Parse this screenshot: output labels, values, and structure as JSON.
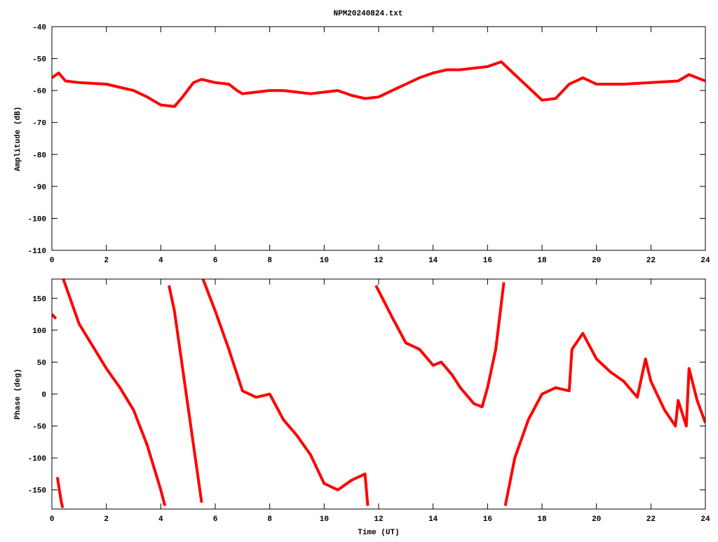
{
  "chart_data": [
    {
      "type": "line",
      "title": "NPM20240824.txt",
      "ylabel": "Amplitude (dB)",
      "xlim": [
        0,
        24
      ],
      "xticks": [
        0,
        2,
        4,
        6,
        8,
        10,
        12,
        14,
        16,
        18,
        20,
        22,
        24
      ],
      "ylim": [
        -110,
        -40
      ],
      "yticks": [
        -110,
        -100,
        -90,
        -80,
        -70,
        -60,
        -50,
        -40
      ],
      "series": [
        {
          "color": "#ff0000",
          "x": [
            0,
            0.25,
            0.5,
            1,
            2,
            3,
            3.5,
            4,
            4.5,
            4.8,
            5.2,
            5.5,
            6,
            6.5,
            6.8,
            7,
            7.5,
            8,
            8.5,
            9,
            9.5,
            10,
            10.5,
            11,
            11.5,
            12,
            12.5,
            13,
            13.5,
            14,
            14.5,
            15,
            15.5,
            16,
            16.5,
            17,
            17.5,
            18,
            18.5,
            19,
            19.5,
            20,
            21,
            22,
            23,
            23.4,
            24
          ],
          "values": [
            -56,
            -54.5,
            -57,
            -57.5,
            -58,
            -60,
            -62,
            -64.5,
            -65,
            -62,
            -57.5,
            -56.5,
            -57.5,
            -58,
            -60,
            -61,
            -60.5,
            -60,
            -60,
            -60.5,
            -61,
            -60.5,
            -60,
            -61.5,
            -62.5,
            -62,
            -60,
            -58,
            -56,
            -54.5,
            -53.5,
            -53.5,
            -53,
            -52.5,
            -51,
            -55,
            -59,
            -63,
            -62.5,
            -58,
            -56,
            -58,
            -58,
            -57.5,
            -57,
            -55,
            -57
          ]
        }
      ]
    },
    {
      "type": "line",
      "ylabel": "Phase (deg)",
      "xlabel": "Time (UT)",
      "xlim": [
        0,
        24
      ],
      "xticks": [
        0,
        2,
        4,
        6,
        8,
        10,
        12,
        14,
        16,
        18,
        20,
        22,
        24
      ],
      "ylim": [
        -180,
        180
      ],
      "yticks": [
        -150,
        -100,
        -50,
        0,
        50,
        100,
        150
      ],
      "series": [
        {
          "color": "#ff0000",
          "x": [
            0,
            0.15,
            0.17,
            0.2,
            0.35,
            0.4,
            0.41,
            0.42,
            1,
            2,
            2.5,
            3,
            3.5,
            4,
            4.15,
            4.2,
            4.3,
            4.5,
            5,
            5.5,
            5.52,
            5.55,
            6,
            6.5,
            7,
            7.5,
            8,
            8.5,
            9,
            9.5,
            10,
            10.5,
            11,
            11.5,
            11.6,
            11.7,
            11.9,
            12.5,
            13,
            13.5,
            14,
            14.3,
            14.7,
            15,
            15.5,
            15.8,
            16,
            16.3,
            16.6,
            16.62,
            16.65,
            17,
            17.5,
            18,
            18.5,
            19,
            19.1,
            19.5,
            20,
            20.5,
            21,
            21.5,
            21.8,
            22,
            22.5,
            22.9,
            23,
            23.3,
            23.4,
            23.7,
            24
          ],
          "values": [
            125,
            118,
            null,
            -130,
            -170,
            -178,
            null,
            180,
            110,
            40,
            10,
            -25,
            -80,
            -150,
            -175,
            null,
            170,
            130,
            -20,
            -170,
            null,
            180,
            130,
            70,
            5,
            -5,
            0,
            -40,
            -65,
            -95,
            -140,
            -150,
            -135,
            -125,
            -175,
            null,
            170,
            120,
            80,
            70,
            45,
            50,
            30,
            10,
            -15,
            -20,
            10,
            70,
            175,
            null,
            -175,
            -100,
            -40,
            0,
            10,
            5,
            70,
            95,
            55,
            35,
            20,
            -5,
            55,
            20,
            -25,
            -50,
            -10,
            -50,
            40,
            -10,
            -45
          ]
        }
      ]
    }
  ]
}
